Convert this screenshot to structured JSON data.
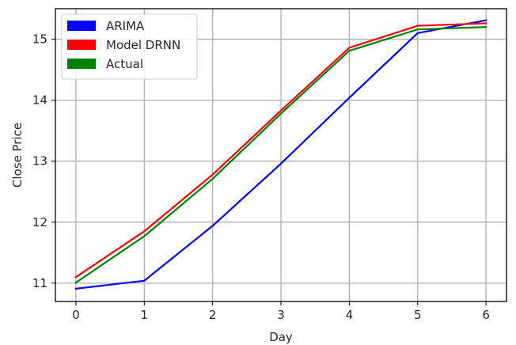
{
  "chart_data": {
    "type": "line",
    "x": [
      0,
      1,
      2,
      3,
      4,
      5,
      6
    ],
    "series": [
      {
        "name": "ARIMA",
        "color": "#0000ff",
        "values": [
          10.91,
          11.04,
          11.94,
          12.96,
          14.04,
          15.1,
          15.31
        ]
      },
      {
        "name": "Model DRNN",
        "color": "#ff0000",
        "values": [
          11.1,
          11.85,
          12.78,
          13.83,
          14.86,
          15.22,
          15.26
        ]
      },
      {
        "name": "Actual",
        "color": "#008000",
        "values": [
          11.01,
          11.77,
          12.71,
          13.78,
          14.81,
          15.16,
          15.2
        ]
      }
    ],
    "xlabel": "Day",
    "ylabel": "Close Price",
    "xticks": [
      "0",
      "1",
      "2",
      "3",
      "4",
      "5",
      "6"
    ],
    "yticks": [
      "11",
      "12",
      "13",
      "14",
      "15"
    ],
    "xlim": [
      -0.3,
      6.3
    ],
    "ylim": [
      10.7,
      15.5
    ],
    "grid": true,
    "legend": "top-left"
  }
}
